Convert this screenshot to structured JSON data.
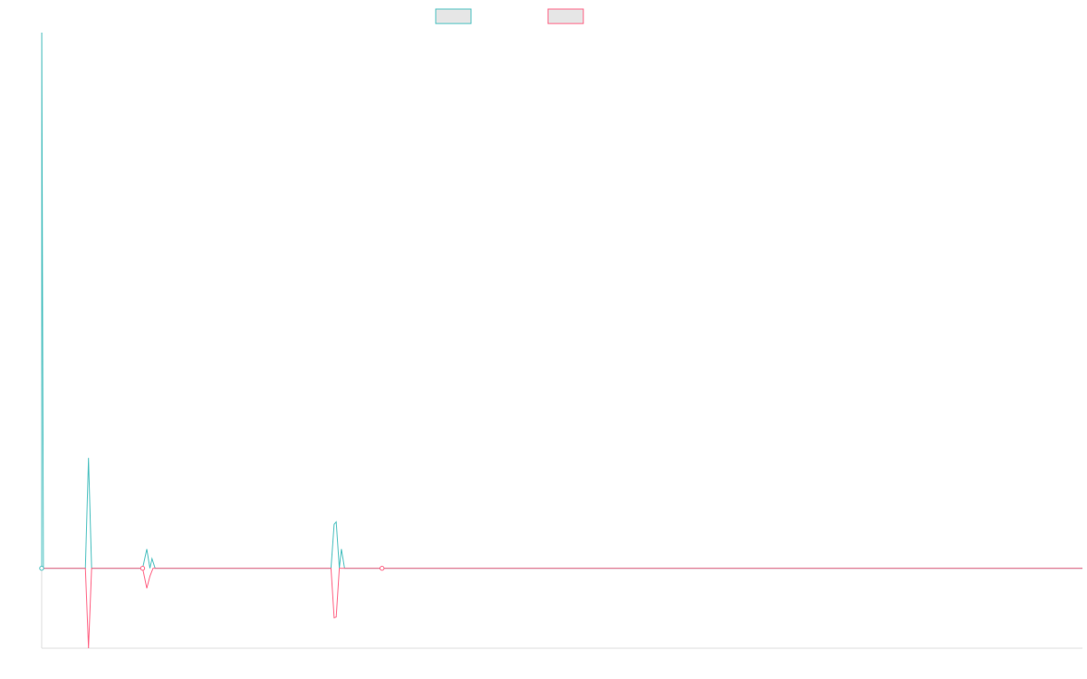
{
  "colors": {
    "series_a": "#4bc0c0",
    "series_b": "#ff6384",
    "axis": "#dddddd",
    "background": "#ffffff"
  },
  "legend": {
    "placement": "top-center",
    "entries": [
      {
        "series": "series_a",
        "label": ""
      },
      {
        "series": "series_b",
        "label": ""
      }
    ]
  },
  "chart_data": {
    "type": "line",
    "title": "",
    "xlabel": "",
    "ylabel": "",
    "grid": false,
    "xlim": [
      0,
      1000
    ],
    "ylim": [
      -1,
      6.7
    ],
    "series": [
      {
        "color_key": "series_a",
        "points": [
          [
            0,
            0
          ],
          [
            0.1,
            6.7
          ],
          [
            1.7,
            0
          ],
          [
            42,
            0
          ],
          [
            45,
            1.38
          ],
          [
            48,
            0
          ],
          [
            97,
            0
          ],
          [
            101,
            0.24
          ],
          [
            104,
            0
          ],
          [
            106,
            0.12
          ],
          [
            109,
            0
          ],
          [
            278,
            0
          ],
          [
            281,
            0.55
          ],
          [
            283,
            0.58
          ],
          [
            286,
            0
          ],
          [
            288,
            0.24
          ],
          [
            291,
            0
          ],
          [
            1000,
            0
          ]
        ]
      },
      {
        "color_key": "series_b",
        "points": [
          [
            0,
            0
          ],
          [
            42,
            0
          ],
          [
            45,
            -1
          ],
          [
            48,
            0
          ],
          [
            97,
            0
          ],
          [
            101,
            -0.25
          ],
          [
            104,
            -0.1
          ],
          [
            107,
            0
          ],
          [
            278,
            0
          ],
          [
            281,
            -0.62
          ],
          [
            283,
            -0.61
          ],
          [
            286,
            0
          ],
          [
            1000,
            0
          ]
        ]
      }
    ],
    "markers": [
      {
        "series": "series_a",
        "x": 0,
        "y": 0
      },
      {
        "series": "series_b",
        "x": 97,
        "y": 0
      },
      {
        "series": "series_b",
        "x": 327,
        "y": 0
      }
    ]
  }
}
